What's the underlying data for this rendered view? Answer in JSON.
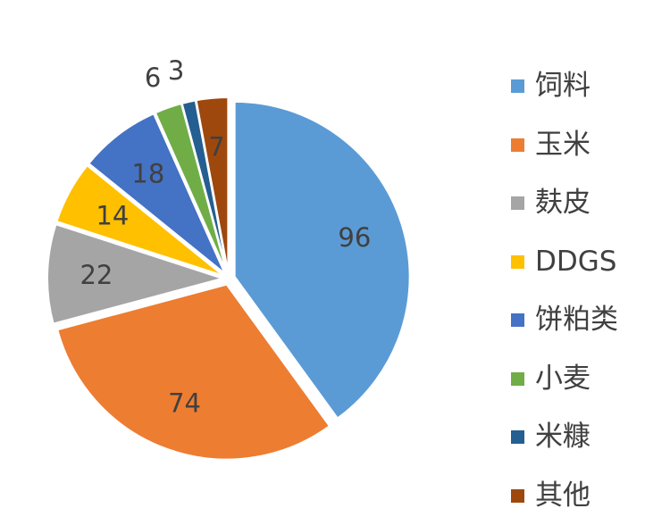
{
  "chart_data": {
    "type": "pie",
    "title": "",
    "legend_position": "right",
    "slices": [
      {
        "label": "饲料",
        "value": 96,
        "color": "#5B9BD5",
        "exploded": true
      },
      {
        "label": "玉米",
        "value": 74,
        "color": "#ED7D31",
        "exploded": true
      },
      {
        "label": "麸皮",
        "value": 22,
        "color": "#A5A5A5",
        "exploded": true
      },
      {
        "label": "DDGS",
        "value": 14,
        "color": "#FFC000",
        "exploded": true
      },
      {
        "label": "饼粕类",
        "value": 18,
        "color": "#4472C4",
        "exploded": true
      },
      {
        "label": "小麦",
        "value": 6,
        "color": "#70AD47",
        "exploded": true
      },
      {
        "label": "米糠",
        "value": 3,
        "color": "#255E91",
        "exploded": true
      },
      {
        "label": "其他",
        "value": 7,
        "color": "#9E480E",
        "exploded": true
      }
    ]
  }
}
